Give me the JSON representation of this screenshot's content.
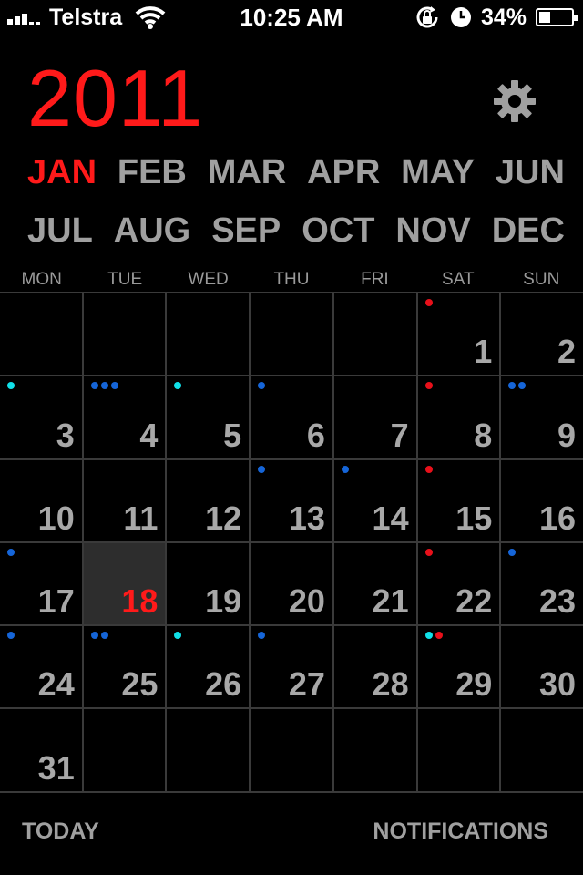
{
  "status_bar": {
    "carrier": "Telstra",
    "time": "10:25 AM",
    "battery_percent": "34%",
    "battery_level": 0.34,
    "icons": [
      "signal-icon",
      "wifi-icon",
      "rotation-lock-icon",
      "alarm-clock-icon",
      "battery-icon"
    ]
  },
  "header": {
    "year": "2011",
    "settings_icon": "gear-icon"
  },
  "months": {
    "row1": [
      "JAN",
      "FEB",
      "MAR",
      "APR",
      "MAY",
      "JUN"
    ],
    "row2": [
      "JUL",
      "AUG",
      "SEP",
      "OCT",
      "NOV",
      "DEC"
    ],
    "current": "JAN"
  },
  "weekdays": [
    "MON",
    "TUE",
    "WED",
    "THU",
    "FRI",
    "SAT",
    "SUN"
  ],
  "colors": {
    "accent_red": "#ff1a1a",
    "dot_red": "#e8101a",
    "dot_blue": "#1565d8",
    "dot_cyan": "#10e0e8",
    "text_gray": "#a8a8a8",
    "grid_line": "#3a3a3a",
    "today_bg": "#2d2d2d"
  },
  "calendar": {
    "today": "18",
    "weeks": [
      [
        {
          "day": "",
          "dots": []
        },
        {
          "day": "",
          "dots": []
        },
        {
          "day": "",
          "dots": []
        },
        {
          "day": "",
          "dots": []
        },
        {
          "day": "",
          "dots": []
        },
        {
          "day": "1",
          "dots": [
            "red"
          ]
        },
        {
          "day": "2",
          "dots": []
        }
      ],
      [
        {
          "day": "3",
          "dots": [
            "cyan"
          ]
        },
        {
          "day": "4",
          "dots": [
            "blue",
            "blue",
            "blue"
          ]
        },
        {
          "day": "5",
          "dots": [
            "cyan"
          ]
        },
        {
          "day": "6",
          "dots": [
            "blue"
          ]
        },
        {
          "day": "7",
          "dots": []
        },
        {
          "day": "8",
          "dots": [
            "red"
          ]
        },
        {
          "day": "9",
          "dots": [
            "blue",
            "blue"
          ]
        }
      ],
      [
        {
          "day": "10",
          "dots": []
        },
        {
          "day": "11",
          "dots": []
        },
        {
          "day": "12",
          "dots": []
        },
        {
          "day": "13",
          "dots": [
            "blue"
          ]
        },
        {
          "day": "14",
          "dots": [
            "blue"
          ]
        },
        {
          "day": "15",
          "dots": [
            "red"
          ]
        },
        {
          "day": "16",
          "dots": []
        }
      ],
      [
        {
          "day": "17",
          "dots": [
            "blue"
          ]
        },
        {
          "day": "18",
          "dots": []
        },
        {
          "day": "19",
          "dots": []
        },
        {
          "day": "20",
          "dots": []
        },
        {
          "day": "21",
          "dots": []
        },
        {
          "day": "22",
          "dots": [
            "red"
          ]
        },
        {
          "day": "23",
          "dots": [
            "blue"
          ]
        }
      ],
      [
        {
          "day": "24",
          "dots": [
            "blue"
          ]
        },
        {
          "day": "25",
          "dots": [
            "blue",
            "blue"
          ]
        },
        {
          "day": "26",
          "dots": [
            "cyan"
          ]
        },
        {
          "day": "27",
          "dots": [
            "blue"
          ]
        },
        {
          "day": "28",
          "dots": []
        },
        {
          "day": "29",
          "dots": [
            "cyan",
            "red"
          ]
        },
        {
          "day": "30",
          "dots": []
        }
      ],
      [
        {
          "day": "31",
          "dots": []
        },
        {
          "day": "",
          "dots": []
        },
        {
          "day": "",
          "dots": []
        },
        {
          "day": "",
          "dots": []
        },
        {
          "day": "",
          "dots": []
        },
        {
          "day": "",
          "dots": []
        },
        {
          "day": "",
          "dots": []
        }
      ]
    ]
  },
  "bottom_bar": {
    "today_label": "TODAY",
    "notifications_label": "NOTIFICATIONS"
  }
}
